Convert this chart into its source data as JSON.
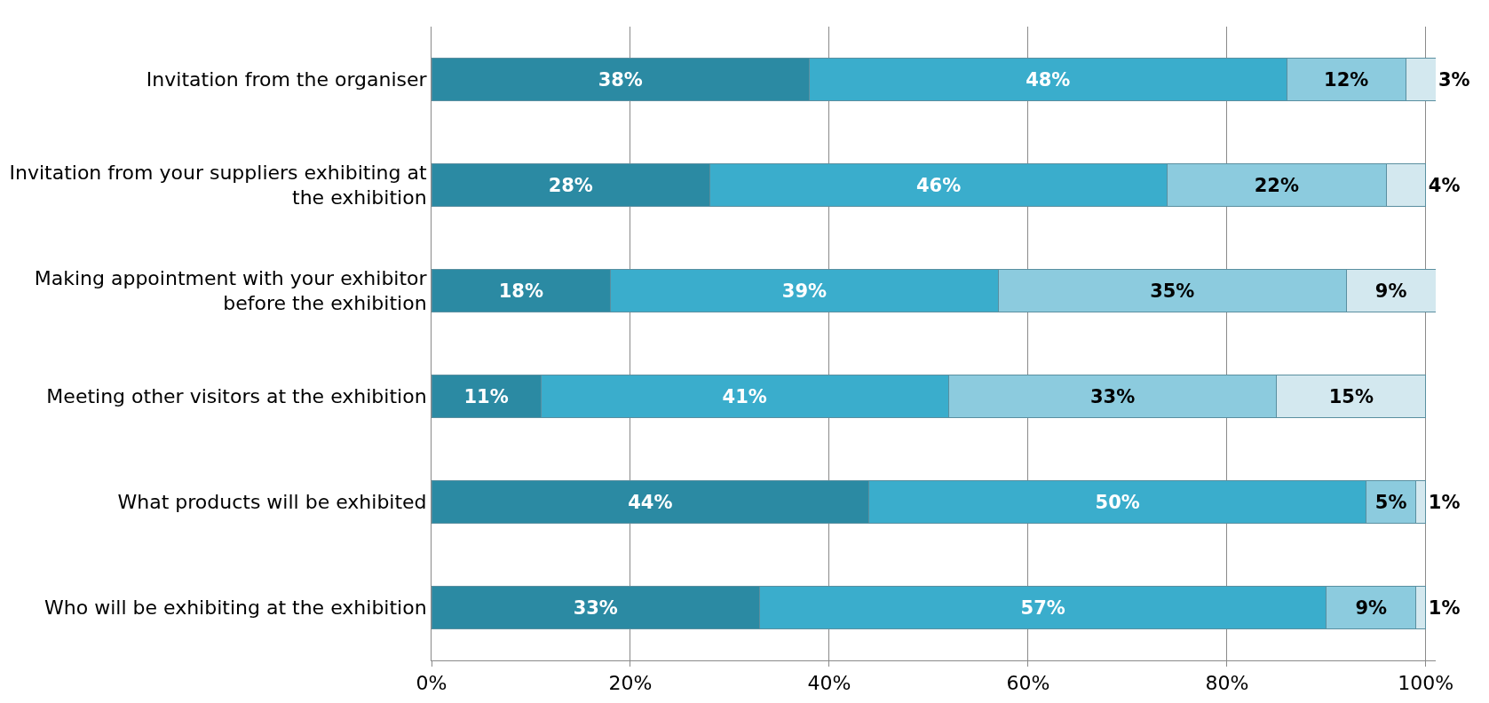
{
  "chart_data": {
    "type": "bar",
    "orientation": "horizontal",
    "stacked": true,
    "grid": "x",
    "legend": false,
    "categories": [
      "Invitation from the organiser",
      "Invitation from your suppliers exhibiting at the exhibition",
      "Making appointment with your exhibitor before the exhibition",
      "Meeting other visitors at the exhibition",
      "What products will be exhibited",
      "Who will be exhibiting at the exhibition"
    ],
    "series": [
      {
        "color": "#2b8aa3",
        "values": [
          38,
          28,
          18,
          11,
          44,
          33
        ],
        "value_labels": [
          "38%",
          "28%",
          "18%",
          "11%",
          "44%",
          "33%"
        ]
      },
      {
        "color": "#3aadcc",
        "values": [
          48,
          46,
          39,
          41,
          50,
          57
        ],
        "value_labels": [
          "48%",
          "46%",
          "39%",
          "41%",
          "50%",
          "57%"
        ]
      },
      {
        "color": "#8ccbde",
        "values": [
          12,
          22,
          35,
          33,
          5,
          9
        ],
        "value_labels": [
          "12%",
          "22%",
          "35%",
          "33%",
          "5%",
          "9%"
        ]
      },
      {
        "color": "#d3e8ef",
        "values": [
          3,
          4,
          9,
          15,
          1,
          1
        ],
        "value_labels": [
          "3%",
          "4%",
          "9%",
          "15%",
          "1%",
          "1%"
        ]
      }
    ],
    "xlim": [
      0,
      101
    ],
    "xticks": [
      {
        "value": 0,
        "label": "0%"
      },
      {
        "value": 20,
        "label": "20%"
      },
      {
        "value": 40,
        "label": "40%"
      },
      {
        "value": 60,
        "label": "60%"
      },
      {
        "value": 80,
        "label": "80%"
      },
      {
        "value": 100,
        "label": "100%"
      }
    ]
  }
}
